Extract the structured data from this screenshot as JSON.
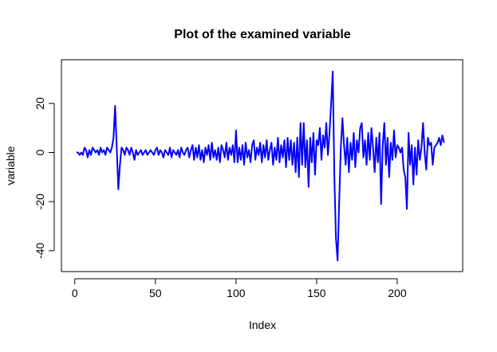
{
  "chart_data": {
    "type": "line",
    "title": "Plot of the examined variable",
    "x_label": "Index",
    "y_label": "variable",
    "color": "#0000ff",
    "xlim": [
      -8.3,
      240.6
    ],
    "xticks": [
      0,
      50,
      100,
      150,
      200
    ],
    "ylim": [
      -48.5,
      37.8
    ],
    "yticks": [
      -40,
      -20,
      0,
      20
    ],
    "values": [
      0,
      0,
      -1,
      0,
      -1,
      2,
      1,
      -2,
      1,
      -1,
      2,
      1,
      0,
      1,
      -1,
      2,
      0,
      1,
      -1,
      2,
      1,
      0,
      2,
      6,
      19,
      2,
      -15,
      -5,
      2,
      1,
      -1,
      2,
      1,
      -1,
      2,
      0,
      -3,
      1,
      -1,
      0,
      1,
      -1,
      0,
      1,
      -1,
      0,
      1,
      0,
      -1,
      1,
      2,
      -1,
      1,
      0,
      -2,
      1,
      0,
      -1,
      2,
      -2,
      1,
      0,
      -1,
      1,
      -2,
      2,
      0,
      -1,
      1,
      2,
      -2,
      1,
      3,
      -3,
      2,
      -2,
      3,
      -3,
      1,
      -4,
      2,
      -1,
      3,
      -3,
      4,
      -2,
      1,
      -3,
      2,
      -4,
      3,
      1,
      -2,
      4,
      -3,
      2,
      -1,
      3,
      -4,
      9,
      -4,
      2,
      -3,
      3,
      -5,
      4,
      -2,
      1,
      -4,
      3,
      5,
      -3,
      2,
      -1,
      4,
      -4,
      3,
      -2,
      5,
      -3,
      1,
      4,
      -5,
      2,
      -3,
      6,
      -4,
      3,
      -2,
      5,
      -6,
      6,
      -3,
      5,
      -5,
      4,
      -8,
      6,
      -10,
      12,
      -5,
      12,
      -6,
      5,
      -14,
      6,
      -4,
      8,
      -9,
      5,
      3,
      10,
      -3,
      7,
      2,
      12,
      -1,
      8,
      20,
      33,
      -10,
      -35,
      -44,
      -20,
      2,
      14,
      3,
      -5,
      6,
      -8,
      4,
      -3,
      8,
      -6,
      5,
      0,
      10,
      12,
      -2,
      5,
      -5,
      8,
      -3,
      10,
      2,
      -8,
      6,
      -4,
      8,
      -21,
      3,
      12,
      -5,
      6,
      -10,
      4,
      -3,
      9,
      -2,
      3,
      2,
      0,
      2,
      -7,
      -10,
      -23,
      8,
      -5,
      3,
      -13,
      2,
      -9,
      5,
      -3,
      2,
      12,
      0,
      -7,
      6,
      3,
      4,
      -5,
      2,
      3,
      4,
      6,
      3,
      7,
      4
    ]
  }
}
